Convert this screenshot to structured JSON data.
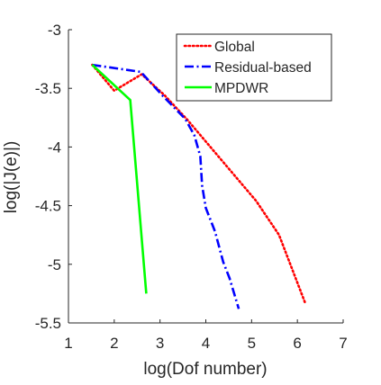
{
  "chart_data": {
    "type": "line",
    "title": "",
    "xlabel": "log(Dof number)",
    "ylabel": "log(|J(e)|)",
    "xlim": [
      1,
      7
    ],
    "ylim": [
      -5.5,
      -3
    ],
    "xticks": [
      1,
      2,
      3,
      4,
      5,
      6,
      7
    ],
    "xtick_labels": [
      "1",
      "2",
      "3",
      "4",
      "5",
      "6",
      "7"
    ],
    "yticks": [
      -3,
      -3.5,
      -4,
      -4.5,
      -5,
      -5.5
    ],
    "ytick_labels": [
      "-3",
      "-3.5",
      "-4",
      "-4.5",
      "-5",
      "-5.5"
    ],
    "grid": false,
    "legend_position": "top-right",
    "series": [
      {
        "name": "Global",
        "color": "#ff0000",
        "line_style": "dotted",
        "x": [
          1.52,
          2.0,
          2.6,
          3.1,
          3.6,
          4.1,
          4.6,
          5.1,
          5.6,
          6.17
        ],
        "y": [
          -3.3,
          -3.52,
          -3.38,
          -3.56,
          -3.77,
          -4.0,
          -4.23,
          -4.46,
          -4.75,
          -5.33
        ]
      },
      {
        "name": "Residual-based",
        "color": "#0000ff",
        "line_style": "dashdot",
        "x": [
          1.52,
          2.58,
          3.05,
          3.55,
          3.75,
          3.88,
          3.92,
          4.0,
          4.2,
          4.38,
          4.52,
          4.72
        ],
        "y": [
          -3.3,
          -3.36,
          -3.56,
          -3.76,
          -3.9,
          -4.08,
          -4.33,
          -4.52,
          -4.72,
          -4.98,
          -5.12,
          -5.38
        ]
      },
      {
        "name": "MPDWR",
        "color": "#00ff00",
        "line_style": "solid",
        "x": [
          1.52,
          2.35,
          2.7
        ],
        "y": [
          -3.3,
          -3.6,
          -5.25
        ]
      }
    ]
  }
}
